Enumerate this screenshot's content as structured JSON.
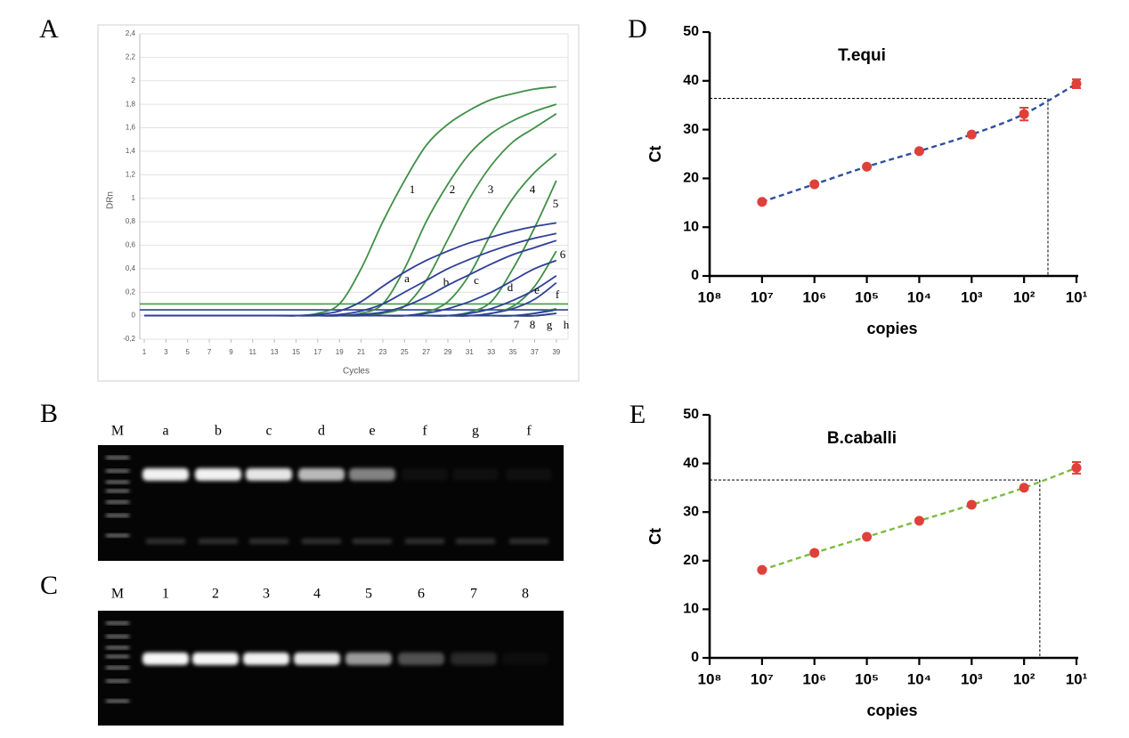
{
  "panel_labels": [
    "A",
    "B",
    "C",
    "D",
    "E"
  ],
  "chart_data": [
    {
      "type": "line",
      "x_label": "Cycles",
      "y_label": "DRn",
      "x": [
        1,
        13,
        15,
        17,
        19,
        21,
        23,
        25,
        27,
        29,
        31,
        33,
        35,
        37,
        39
      ],
      "xlim": [
        1,
        40
      ],
      "xticks": [
        1,
        3,
        5,
        7,
        9,
        11,
        13,
        15,
        17,
        19,
        21,
        23,
        25,
        27,
        29,
        31,
        33,
        35,
        37,
        39
      ],
      "ylim": [
        -0.2,
        2.4
      ],
      "yticks": [
        {
          "value": -0.2,
          "label": "-0,2"
        },
        0,
        {
          "value": 0.2,
          "label": "0,2"
        },
        {
          "value": 0.4,
          "label": "0,4"
        },
        {
          "value": 0.6,
          "label": "0,6"
        },
        {
          "value": 0.8,
          "label": "0,8"
        },
        1,
        {
          "value": 1.2,
          "label": "1,2"
        },
        {
          "value": 1.4,
          "label": "1,4"
        },
        {
          "value": 1.6,
          "label": "1,6"
        },
        {
          "value": 1.8,
          "label": "1,8"
        },
        2,
        {
          "value": 2.2,
          "label": "2,2"
        },
        {
          "value": 2.4,
          "label": "2,4"
        }
      ],
      "grid": true,
      "thresholds": [
        {
          "value": 0.1,
          "color": "#3f9a4c"
        },
        {
          "value": 0.05,
          "color": "#2e3f98"
        }
      ],
      "series": [
        {
          "name": "1",
          "color": "#3f8f46",
          "values": [
            0,
            0,
            0,
            0.02,
            0.1,
            0.4,
            0.8,
            1.15,
            1.45,
            1.63,
            1.75,
            1.84,
            1.89,
            1.93,
            1.95
          ]
        },
        {
          "name": "2",
          "color": "#3f8f46",
          "values": [
            0,
            0,
            0,
            0,
            0,
            0.02,
            0.1,
            0.4,
            0.8,
            1.12,
            1.38,
            1.55,
            1.66,
            1.74,
            1.8
          ]
        },
        {
          "name": "3",
          "color": "#3f8f46",
          "values": [
            0,
            0,
            0,
            0,
            0,
            0,
            0.02,
            0.08,
            0.3,
            0.65,
            1.0,
            1.28,
            1.48,
            1.6,
            1.72
          ]
        },
        {
          "name": "4",
          "color": "#3f8f46",
          "values": [
            0,
            0,
            0,
            0,
            0,
            0,
            0,
            0,
            0.03,
            0.12,
            0.35,
            0.7,
            1.0,
            1.22,
            1.38
          ]
        },
        {
          "name": "5",
          "color": "#3f8f46",
          "values": [
            0,
            0,
            0,
            0,
            0,
            0,
            0,
            0,
            0,
            0,
            0.03,
            0.12,
            0.4,
            0.75,
            1.15
          ]
        },
        {
          "name": "6",
          "color": "#3f8f46",
          "values": [
            0,
            0,
            0,
            0,
            0,
            0,
            0,
            0,
            0,
            0,
            0,
            0.02,
            0.08,
            0.25,
            0.55
          ]
        },
        {
          "name": "7",
          "color": "#3f8f46",
          "values": [
            0,
            0,
            0,
            0,
            0,
            0,
            0,
            0,
            0,
            0,
            0,
            0,
            0,
            0.02,
            0.06
          ]
        },
        {
          "name": "8",
          "color": "#3f8f46",
          "values": [
            0,
            0,
            0,
            0,
            0,
            0,
            0,
            0,
            0,
            0,
            0,
            0,
            0,
            0,
            0.02
          ]
        },
        {
          "name": "a",
          "color": "#2f3f96",
          "values": [
            0,
            0,
            0,
            0.01,
            0.04,
            0.12,
            0.25,
            0.37,
            0.47,
            0.55,
            0.62,
            0.67,
            0.72,
            0.76,
            0.79
          ]
        },
        {
          "name": "b",
          "color": "#2f3f96",
          "values": [
            0,
            0,
            0,
            0,
            0.01,
            0.04,
            0.1,
            0.2,
            0.3,
            0.4,
            0.48,
            0.55,
            0.61,
            0.66,
            0.7
          ]
        },
        {
          "name": "c",
          "color": "#2f3f96",
          "values": [
            0,
            0,
            0,
            0,
            0,
            0.01,
            0.03,
            0.08,
            0.16,
            0.26,
            0.35,
            0.44,
            0.52,
            0.58,
            0.64
          ]
        },
        {
          "name": "d",
          "color": "#2f3f96",
          "values": [
            0,
            0,
            0,
            0,
            0,
            0,
            0,
            0,
            0.02,
            0.06,
            0.12,
            0.2,
            0.3,
            0.4,
            0.47
          ]
        },
        {
          "name": "e",
          "color": "#2f3f96",
          "values": [
            0,
            0,
            0,
            0,
            0,
            0,
            0,
            0,
            0,
            0,
            0.02,
            0.06,
            0.13,
            0.22,
            0.34
          ]
        },
        {
          "name": "f",
          "color": "#2f3f96",
          "values": [
            0,
            0,
            0,
            0,
            0,
            0,
            0,
            0,
            0,
            0,
            0,
            0.02,
            0.06,
            0.14,
            0.28
          ]
        },
        {
          "name": "g",
          "color": "#2f3f96",
          "values": [
            0,
            0,
            0,
            0,
            0,
            0,
            0,
            0,
            0,
            0,
            0,
            0,
            0,
            0.02,
            0.05
          ]
        },
        {
          "name": "h",
          "color": "#2f3f96",
          "values": [
            0,
            0,
            0,
            0,
            0,
            0,
            0,
            0,
            0,
            0,
            0,
            0,
            0,
            0,
            0.02
          ]
        }
      ]
    },
    {
      "type": "scatter",
      "title": "T.equi",
      "x_label": "copies",
      "y_label": "Ct",
      "xscale": "log",
      "x": [
        10000000,
        1000000,
        100000,
        10000,
        1000,
        100,
        10
      ],
      "xlim": [
        100000000,
        10
      ],
      "xticks": [
        {
          "value": 100000000,
          "label": "10⁸"
        },
        {
          "value": 10000000,
          "label": "10⁷"
        },
        {
          "value": 1000000,
          "label": "10⁶"
        },
        {
          "value": 100000,
          "label": "10⁵"
        },
        {
          "value": 10000,
          "label": "10⁴"
        },
        {
          "value": 1000,
          "label": "10³"
        },
        {
          "value": 100,
          "label": "10²"
        },
        {
          "value": 10,
          "label": "10¹"
        }
      ],
      "ylim": [
        0,
        50
      ],
      "yticks": [
        0,
        10,
        20,
        30,
        40,
        50
      ],
      "series": [
        {
          "color": "#e0403a",
          "line_color": "#2d4f9e",
          "values": [
            15.2,
            18.8,
            22.4,
            25.6,
            29.0,
            33.2,
            39.4
          ],
          "errors": [
            0.3,
            0.3,
            0.3,
            0.3,
            0.3,
            1.3,
            0.9
          ]
        }
      ],
      "cutoff": {
        "x": 35,
        "y": 36.4
      }
    },
    {
      "type": "scatter",
      "title": "B.caballi",
      "x_label": "copies",
      "y_label": "Ct",
      "xscale": "log",
      "x": [
        10000000,
        1000000,
        100000,
        10000,
        1000,
        100,
        10
      ],
      "xlim": [
        100000000,
        10
      ],
      "xticks": [
        {
          "value": 100000000,
          "label": "10⁸"
        },
        {
          "value": 10000000,
          "label": "10⁷"
        },
        {
          "value": 1000000,
          "label": "10⁶"
        },
        {
          "value": 100000,
          "label": "10⁵"
        },
        {
          "value": 10000,
          "label": "10⁴"
        },
        {
          "value": 1000,
          "label": "10³"
        },
        {
          "value": 100,
          "label": "10²"
        },
        {
          "value": 10,
          "label": "10¹"
        }
      ],
      "ylim": [
        0,
        50
      ],
      "yticks": [
        0,
        10,
        20,
        30,
        40,
        50
      ],
      "series": [
        {
          "color": "#e0403a",
          "line_color": "#7dbb3f",
          "values": [
            18.1,
            21.6,
            24.9,
            28.2,
            31.5,
            35.0,
            39.1
          ],
          "errors": [
            0.3,
            0.3,
            0.3,
            0.3,
            0.3,
            0.3,
            1.2
          ]
        }
      ],
      "cutoff": {
        "x": 50,
        "y": 36.6
      }
    }
  ],
  "gels": [
    {
      "lanes": [
        "M",
        "a",
        "b",
        "c",
        "d",
        "e",
        "f",
        "g",
        "f"
      ]
    },
    {
      "lanes": [
        "M",
        "1",
        "2",
        "3",
        "4",
        "5",
        "6",
        "7",
        "8"
      ]
    }
  ]
}
